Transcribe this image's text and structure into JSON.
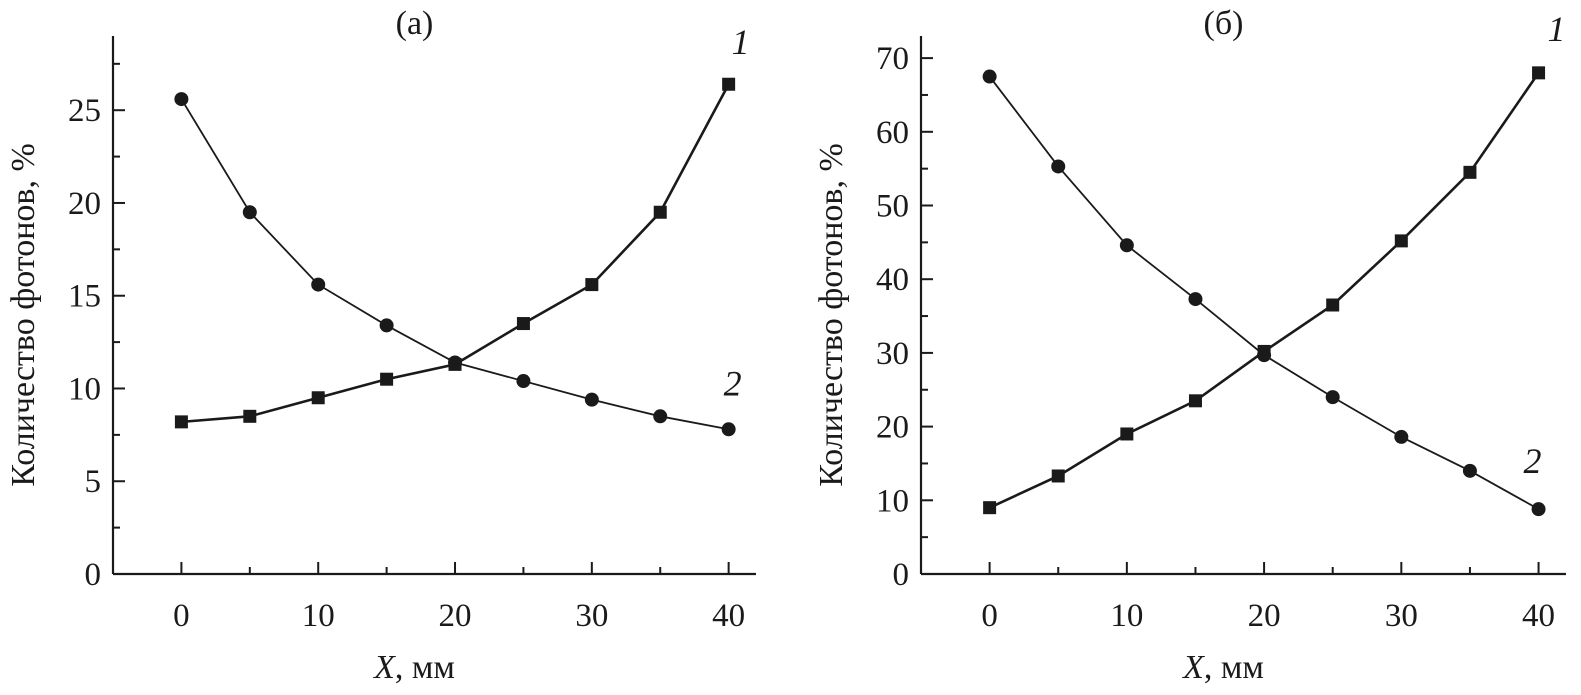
{
  "chart_data": [
    {
      "type": "line",
      "title": "(а)",
      "xlabel": {
        "var": "X",
        "unit": ", мм"
      },
      "ylabel": "Количество фотонов, %",
      "x_ticks": [
        0,
        10,
        20,
        30,
        40
      ],
      "x_tick_labels": [
        "0",
        "10",
        "20",
        "30",
        "40"
      ],
      "y_ticks": [
        0,
        5,
        10,
        15,
        20,
        25
      ],
      "y_tick_labels": [
        "0",
        "5",
        "10",
        "15",
        "20",
        "25"
      ],
      "xlim": [
        -5,
        42
      ],
      "ylim": [
        0,
        29
      ],
      "grid": false,
      "x": [
        0,
        5,
        10,
        15,
        20,
        25,
        30,
        35,
        40
      ],
      "series": [
        {
          "name": "1",
          "marker": "square",
          "values": [
            8.2,
            8.5,
            9.5,
            10.5,
            11.3,
            13.5,
            15.6,
            19.5,
            26.4
          ]
        },
        {
          "name": "2",
          "marker": "circle",
          "values": [
            25.6,
            19.5,
            15.6,
            13.4,
            11.4,
            10.4,
            9.4,
            8.5,
            7.8
          ]
        }
      ]
    },
    {
      "type": "line",
      "title": "(б)",
      "xlabel": {
        "var": "X",
        "unit": ", мм"
      },
      "ylabel": "Количество фотонов, %",
      "x_ticks": [
        0,
        10,
        20,
        30,
        40
      ],
      "x_tick_labels": [
        "0",
        "10",
        "20",
        "30",
        "40"
      ],
      "y_ticks": [
        0,
        10,
        20,
        30,
        40,
        50,
        60,
        70
      ],
      "y_tick_labels": [
        "0",
        "10",
        "20",
        "30",
        "40",
        "50",
        "60",
        "70"
      ],
      "xlim": [
        -5,
        42
      ],
      "ylim": [
        0,
        73
      ],
      "grid": false,
      "x": [
        0,
        5,
        10,
        15,
        20,
        25,
        30,
        35,
        40
      ],
      "series": [
        {
          "name": "1",
          "marker": "square",
          "values": [
            9.0,
            13.3,
            19.0,
            23.5,
            30.2,
            36.5,
            45.2,
            54.5,
            68.0
          ]
        },
        {
          "name": "2",
          "marker": "circle",
          "values": [
            67.5,
            55.3,
            44.6,
            37.3,
            29.7,
            24.0,
            18.6,
            14.0,
            8.8
          ]
        }
      ]
    }
  ]
}
